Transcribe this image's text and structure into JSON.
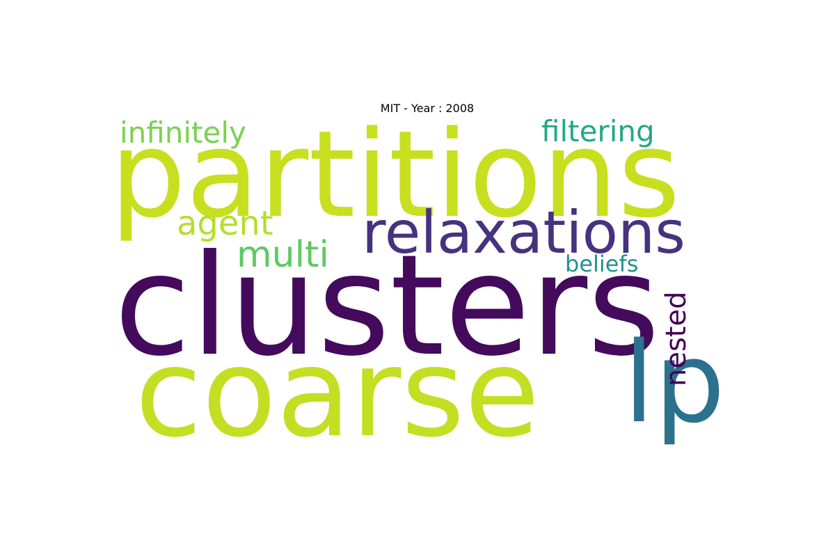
{
  "title": "MIT - Year : 2008",
  "words": [
    {
      "text": "partitions",
      "color": "#c8df1f"
    },
    {
      "text": "clusters",
      "color": "#440a5c"
    },
    {
      "text": "coarse",
      "color": "#c2df23"
    },
    {
      "text": "relaxations",
      "color": "#46327f"
    },
    {
      "text": "lp",
      "color": "#2c718e"
    },
    {
      "text": "infinitely",
      "color": "#7ad151"
    },
    {
      "text": "filtering",
      "color": "#22a884"
    },
    {
      "text": "agent",
      "color": "#b5de2b"
    },
    {
      "text": "multi",
      "color": "#5ec962"
    },
    {
      "text": "beliefs",
      "color": "#21918c"
    },
    {
      "text": "nested",
      "color": "#440154"
    }
  ]
}
